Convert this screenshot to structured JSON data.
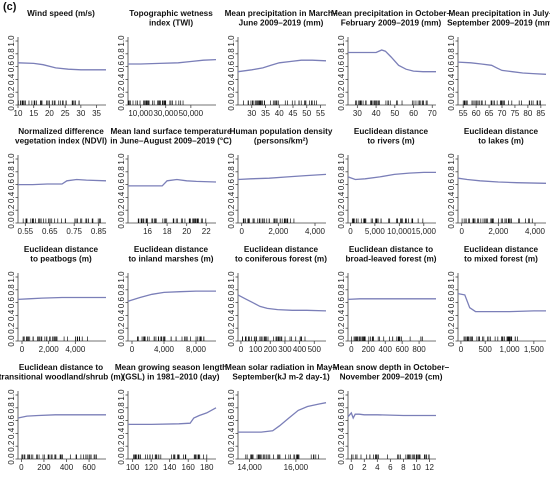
{
  "figure": {
    "label": "(c)"
  },
  "style": {
    "curve_color": "#7b7fb8",
    "rug_color": "#111111",
    "axis_color": "#444444"
  },
  "chart_data": [
    {
      "type": "line",
      "title": [
        "Wind speed (m/s)"
      ],
      "xlim": [
        10,
        38
      ],
      "xticks": [
        10,
        15,
        20,
        25,
        30,
        35
      ],
      "xticklabels": [
        "10",
        "15",
        "20",
        "25",
        "30",
        "35"
      ],
      "ylim": [
        0,
        1
      ],
      "yticks": [
        0,
        0.2,
        0.4,
        0.6,
        0.8,
        1.0
      ],
      "yticklabels": [
        "0.0",
        "0.2",
        "0.4",
        "0.6",
        "0.8",
        "1.0"
      ],
      "x": [
        10,
        15,
        18,
        22,
        26,
        30,
        35,
        38
      ],
      "y": [
        0.66,
        0.65,
        0.63,
        0.58,
        0.56,
        0.55,
        0.55,
        0.55
      ],
      "rug_range": [
        10,
        30
      ]
    },
    {
      "type": "line",
      "title": [
        "Topographic wetness",
        "index (TWI)"
      ],
      "xlim": [
        0,
        70000
      ],
      "xticks": [
        10000,
        30000,
        50000
      ],
      "xticklabels": [
        "10,000",
        "30,000",
        "50,000"
      ],
      "ylim": [
        0,
        1
      ],
      "yticks": [
        0,
        0.2,
        0.4,
        0.6,
        0.8,
        1.0
      ],
      "yticklabels": [
        "0.0",
        "0.2",
        "0.4",
        "0.6",
        "0.8",
        "1.0"
      ],
      "x": [
        0,
        10000,
        25000,
        40000,
        50000,
        60000,
        70000
      ],
      "y": [
        0.64,
        0.64,
        0.65,
        0.66,
        0.68,
        0.7,
        0.71
      ],
      "rug_range": [
        0,
        45000
      ]
    },
    {
      "type": "line",
      "title": [
        "Mean precipitation in March–",
        "June 2009–2019 (mm)"
      ],
      "xlim": [
        25,
        57
      ],
      "xticks": [
        30,
        35,
        40,
        45,
        50,
        55
      ],
      "xticklabels": [
        "30",
        "35",
        "40",
        "45",
        "50",
        "55"
      ],
      "ylim": [
        0,
        1
      ],
      "yticks": [
        0,
        0.2,
        0.4,
        0.6,
        0.8,
        1.0
      ],
      "yticklabels": [
        "0.0",
        "0.2",
        "0.4",
        "0.6",
        "0.8",
        "1.0"
      ],
      "x": [
        25,
        30,
        34,
        37,
        40,
        44,
        48,
        52,
        57
      ],
      "y": [
        0.52,
        0.55,
        0.58,
        0.62,
        0.66,
        0.68,
        0.7,
        0.7,
        0.69
      ],
      "rug_range": [
        27,
        55
      ]
    },
    {
      "type": "line",
      "title": [
        "Mean precipitation in October–",
        "February 2009–2019 (mm)"
      ],
      "xlim": [
        25,
        72
      ],
      "xticks": [
        30,
        40,
        50,
        60,
        70
      ],
      "xticklabels": [
        "30",
        "40",
        "50",
        "60",
        "70"
      ],
      "ylim": [
        0,
        1
      ],
      "yticks": [
        0,
        0.2,
        0.4,
        0.6,
        0.8,
        1.0
      ],
      "yticklabels": [
        "0.0",
        "0.2",
        "0.4",
        "0.6",
        "0.8",
        "1.0"
      ],
      "x": [
        25,
        35,
        40,
        43,
        45,
        48,
        52,
        56,
        60,
        65,
        72
      ],
      "y": [
        0.82,
        0.82,
        0.82,
        0.86,
        0.84,
        0.75,
        0.62,
        0.56,
        0.53,
        0.52,
        0.52
      ],
      "rug_range": [
        27,
        68
      ]
    },
    {
      "type": "line",
      "title": [
        "Mean precipitation in July–",
        "September 2009–2019 (mm)"
      ],
      "xlim": [
        53,
        87
      ],
      "xticks": [
        55,
        60,
        65,
        70,
        75,
        80,
        85
      ],
      "xticklabels": [
        "55",
        "60",
        "65",
        "70",
        "75",
        "80",
        "85"
      ],
      "ylim": [
        0,
        1
      ],
      "yticks": [
        0,
        0.2,
        0.4,
        0.6,
        0.8,
        1.0
      ],
      "yticklabels": [
        "0.0",
        "0.2",
        "0.4",
        "0.6",
        "0.8",
        "1.0"
      ],
      "x": [
        53,
        58,
        62,
        66,
        68,
        70,
        74,
        78,
        82,
        87
      ],
      "y": [
        0.67,
        0.66,
        0.64,
        0.62,
        0.58,
        0.54,
        0.52,
        0.5,
        0.49,
        0.48
      ],
      "rug_range": [
        55,
        85
      ]
    },
    {
      "type": "line",
      "title": [
        "Normalized difference",
        "vegetation index (NDVI)"
      ],
      "xlim": [
        0.52,
        0.88
      ],
      "xticks": [
        0.55,
        0.65,
        0.75,
        0.85
      ],
      "xticklabels": [
        "0.55",
        "0.65",
        "0.75",
        "0.85"
      ],
      "ylim": [
        0,
        1
      ],
      "yticks": [
        0,
        0.2,
        0.4,
        0.6,
        0.8,
        1.0
      ],
      "yticklabels": [
        "0.0",
        "0.2",
        "0.4",
        "0.6",
        "0.8",
        "1.0"
      ],
      "x": [
        0.52,
        0.58,
        0.64,
        0.7,
        0.72,
        0.76,
        0.8,
        0.88
      ],
      "y": [
        0.6,
        0.6,
        0.61,
        0.61,
        0.66,
        0.68,
        0.67,
        0.66
      ],
      "rug_range": [
        0.54,
        0.86
      ]
    },
    {
      "type": "line",
      "title": [
        "Mean land surface temperature",
        "in June–August 2009–2019 (°C)"
      ],
      "xlim": [
        14,
        23
      ],
      "xticks": [
        16,
        18,
        20,
        22
      ],
      "xticklabels": [
        "16",
        "18",
        "20",
        "22"
      ],
      "ylim": [
        0,
        1
      ],
      "yticks": [
        0,
        0.2,
        0.4,
        0.6,
        0.8,
        1.0
      ],
      "yticklabels": [
        "0.0",
        "0.2",
        "0.4",
        "0.6",
        "0.8",
        "1.0"
      ],
      "x": [
        14,
        16,
        17.5,
        18,
        19,
        20,
        21,
        23
      ],
      "y": [
        0.58,
        0.58,
        0.58,
        0.66,
        0.68,
        0.66,
        0.65,
        0.64
      ],
      "rug_range": [
        15,
        22
      ]
    },
    {
      "type": "line",
      "title": [
        "Human population density",
        "(persons/km²)"
      ],
      "xlim": [
        -200,
        4600
      ],
      "xticks": [
        0,
        2000,
        4000
      ],
      "xticklabels": [
        "0",
        "2,000",
        "4,000"
      ],
      "ylim": [
        0,
        1
      ],
      "yticks": [
        0,
        0.2,
        0.4,
        0.6,
        0.8,
        1.0
      ],
      "yticklabels": [
        "0.0",
        "0.2",
        "0.4",
        "0.6",
        "0.8",
        "1.0"
      ],
      "x": [
        -200,
        500,
        1500,
        2500,
        3500,
        4600
      ],
      "y": [
        0.68,
        0.69,
        0.7,
        0.72,
        0.74,
        0.76
      ],
      "rug_range": [
        0,
        3000
      ]
    },
    {
      "type": "line",
      "title": [
        "Euclidean distance",
        "to rivers (m)"
      ],
      "xlim": [
        -500,
        17500
      ],
      "xticks": [
        0,
        5000,
        10000,
        15000
      ],
      "xticklabels": [
        "0",
        "5,000",
        "10,000",
        "15,000"
      ],
      "ylim": [
        0,
        1
      ],
      "yticks": [
        0,
        0.2,
        0.4,
        0.6,
        0.8,
        1.0
      ],
      "yticklabels": [
        "0.0",
        "0.2",
        "0.4",
        "0.6",
        "0.8",
        "1.0"
      ],
      "x": [
        -500,
        1000,
        3000,
        6000,
        9000,
        12000,
        15000,
        17500
      ],
      "y": [
        0.72,
        0.68,
        0.69,
        0.72,
        0.76,
        0.78,
        0.79,
        0.79
      ],
      "rug_range": [
        0,
        15000
      ]
    },
    {
      "type": "line",
      "title": [
        "Euclidean distance",
        "to lakes (m)"
      ],
      "xlim": [
        -200,
        4600
      ],
      "xticks": [
        0,
        2000,
        4000
      ],
      "xticklabels": [
        "0",
        "2,000",
        "4,000"
      ],
      "ylim": [
        0,
        1
      ],
      "yticks": [
        0,
        0.2,
        0.4,
        0.6,
        0.8,
        1.0
      ],
      "yticklabels": [
        "0.0",
        "0.2",
        "0.4",
        "0.6",
        "0.8",
        "1.0"
      ],
      "x": [
        -200,
        300,
        1000,
        2000,
        3000,
        4600
      ],
      "y": [
        0.7,
        0.68,
        0.66,
        0.64,
        0.63,
        0.62
      ],
      "rug_range": [
        0,
        4000
      ]
    },
    {
      "type": "line",
      "title": [
        "Euclidean distance",
        "to peatbogs (m)"
      ],
      "xlim": [
        -300,
        6300
      ],
      "xticks": [
        0,
        2000,
        4000
      ],
      "xticklabels": [
        "0",
        "2,000",
        "4,000"
      ],
      "ylim": [
        0,
        1
      ],
      "yticks": [
        0,
        0.2,
        0.4,
        0.6,
        0.8,
        1.0
      ],
      "yticklabels": [
        "0.0",
        "0.2",
        "0.4",
        "0.6",
        "0.8",
        "1.0"
      ],
      "x": [
        -300,
        500,
        1500,
        3000,
        4500,
        6300
      ],
      "y": [
        0.65,
        0.66,
        0.67,
        0.68,
        0.68,
        0.68
      ],
      "rug_range": [
        0,
        5000
      ]
    },
    {
      "type": "line",
      "title": [
        "Euclidean distance",
        "to inland marshes (m)"
      ],
      "xlim": [
        -500,
        10500
      ],
      "xticks": [
        0,
        4000,
        8000
      ],
      "xticklabels": [
        "0",
        "4,000",
        "8,000"
      ],
      "ylim": [
        0,
        1
      ],
      "yticks": [
        0,
        0.2,
        0.4,
        0.6,
        0.8,
        1.0
      ],
      "yticklabels": [
        "0.0",
        "0.2",
        "0.4",
        "0.6",
        "0.8",
        "1.0"
      ],
      "x": [
        -500,
        1000,
        2500,
        4000,
        6000,
        8000,
        10500
      ],
      "y": [
        0.62,
        0.68,
        0.73,
        0.76,
        0.77,
        0.78,
        0.78
      ],
      "rug_range": [
        0,
        9000
      ]
    },
    {
      "type": "line",
      "title": [
        "Euclidean distance",
        "to coniferous forest (m)"
      ],
      "xlim": [
        -20,
        580
      ],
      "xticks": [
        0,
        100,
        200,
        300,
        400,
        500
      ],
      "xticklabels": [
        "0",
        "100",
        "200",
        "300",
        "400",
        "500"
      ],
      "ylim": [
        0,
        1
      ],
      "yticks": [
        0,
        0.2,
        0.4,
        0.6,
        0.8,
        1.0
      ],
      "yticklabels": [
        "0.0",
        "0.2",
        "0.4",
        "0.6",
        "0.8",
        "1.0"
      ],
      "x": [
        -20,
        30,
        80,
        130,
        180,
        250,
        350,
        450,
        580
      ],
      "y": [
        0.72,
        0.66,
        0.6,
        0.54,
        0.51,
        0.49,
        0.48,
        0.48,
        0.47
      ],
      "rug_range": [
        0,
        500
      ]
    },
    {
      "type": "line",
      "title": [
        "Euclidean distance to",
        "broad-leaved forest (m)"
      ],
      "xlim": [
        -40,
        1000
      ],
      "xticks": [
        0,
        200,
        400,
        600,
        800
      ],
      "xticklabels": [
        "0",
        "200",
        "400",
        "600",
        "800"
      ],
      "ylim": [
        0,
        1
      ],
      "yticks": [
        0,
        0.2,
        0.4,
        0.6,
        0.8,
        1.0
      ],
      "yticklabels": [
        "0.0",
        "0.2",
        "0.4",
        "0.6",
        "0.8",
        "1.0"
      ],
      "x": [
        -40,
        100,
        300,
        500,
        700,
        1000
      ],
      "y": [
        0.65,
        0.66,
        0.66,
        0.66,
        0.66,
        0.66
      ],
      "rug_range": [
        0,
        850
      ]
    },
    {
      "type": "line",
      "title": [
        "Euclidean distance",
        "to mixed forest (m)"
      ],
      "xlim": [
        -60,
        1750
      ],
      "xticks": [
        0,
        500,
        1000,
        1500
      ],
      "xticklabels": [
        "0",
        "500",
        "1,000",
        "1,500"
      ],
      "ylim": [
        0,
        1
      ],
      "yticks": [
        0,
        0.2,
        0.4,
        0.6,
        0.8,
        1.0
      ],
      "yticklabels": [
        "0.0",
        "0.2",
        "0.4",
        "0.6",
        "0.8",
        "1.0"
      ],
      "x": [
        -60,
        80,
        180,
        300,
        500,
        1000,
        1500,
        1750
      ],
      "y": [
        0.74,
        0.72,
        0.52,
        0.46,
        0.46,
        0.46,
        0.47,
        0.47
      ],
      "rug_range": [
        0,
        1200
      ]
    },
    {
      "type": "line",
      "title": [
        "Euclidean distance to",
        "transitional woodland/shrub (m)"
      ],
      "xlim": [
        -30,
        750
      ],
      "xticks": [
        0,
        200,
        400,
        600
      ],
      "xticklabels": [
        "0",
        "200",
        "400",
        "600"
      ],
      "ylim": [
        0,
        1
      ],
      "yticks": [
        0,
        0.2,
        0.4,
        0.6,
        0.8,
        1.0
      ],
      "yticklabels": [
        "0.0",
        "0.2",
        "0.4",
        "0.6",
        "0.8",
        "1.0"
      ],
      "x": [
        -30,
        50,
        150,
        300,
        450,
        750
      ],
      "y": [
        0.64,
        0.67,
        0.68,
        0.69,
        0.69,
        0.69
      ],
      "rug_range": [
        0,
        680
      ]
    },
    {
      "type": "line",
      "title": [
        "Mean growing season length",
        "(GSL) in 1981–2010 (day)"
      ],
      "xlim": [
        95,
        190
      ],
      "xticks": [
        100,
        120,
        140,
        160,
        180
      ],
      "xticklabels": [
        "100",
        "120",
        "140",
        "160",
        "180"
      ],
      "ylim": [
        0,
        1
      ],
      "yticks": [
        0,
        0.2,
        0.4,
        0.6,
        0.8,
        1.0
      ],
      "yticklabels": [
        "0.0",
        "0.2",
        "0.4",
        "0.6",
        "0.8",
        "1.0"
      ],
      "x": [
        95,
        120,
        150,
        162,
        166,
        172,
        180,
        190
      ],
      "y": [
        0.54,
        0.54,
        0.55,
        0.56,
        0.64,
        0.68,
        0.72,
        0.8
      ],
      "rug_range": [
        100,
        185
      ]
    },
    {
      "type": "line",
      "title": [
        "Mean solar radiation in May–",
        "September(kJ m-2 day-1)"
      ],
      "xlim": [
        13500,
        17300
      ],
      "xticks": [
        14000,
        16000
      ],
      "xticklabels": [
        "14,000",
        "16,000"
      ],
      "ylim": [
        0,
        1
      ],
      "yticks": [
        0,
        0.2,
        0.4,
        0.6,
        0.8,
        1.0
      ],
      "yticklabels": [
        "0.0",
        "0.2",
        "0.4",
        "0.6",
        "0.8",
        "1.0"
      ],
      "x": [
        13500,
        14500,
        15000,
        15300,
        15700,
        16100,
        16500,
        17000,
        17300
      ],
      "y": [
        0.42,
        0.42,
        0.44,
        0.52,
        0.64,
        0.76,
        0.82,
        0.86,
        0.88
      ],
      "rug_range": [
        13800,
        17000
      ]
    },
    {
      "type": "line",
      "title": [
        "Mean snow depth in October–",
        "November 2009–2019 (cm)"
      ],
      "xlim": [
        -0.5,
        13
      ],
      "xticks": [
        0,
        2,
        4,
        6,
        8,
        10,
        12
      ],
      "xticklabels": [
        "0",
        "2",
        "4",
        "6",
        "8",
        "10",
        "12"
      ],
      "ylim": [
        0,
        1
      ],
      "yticks": [
        0,
        0.2,
        0.4,
        0.6,
        0.8,
        1.0
      ],
      "yticklabels": [
        "0.0",
        "0.2",
        "0.4",
        "0.6",
        "0.8",
        "1.0"
      ],
      "x": [
        -0.5,
        0,
        0.3,
        0.6,
        1.2,
        2,
        4,
        8,
        13
      ],
      "y": [
        0.66,
        0.72,
        0.64,
        0.7,
        0.7,
        0.69,
        0.69,
        0.68,
        0.68
      ],
      "rug_range": [
        0,
        12
      ]
    }
  ]
}
